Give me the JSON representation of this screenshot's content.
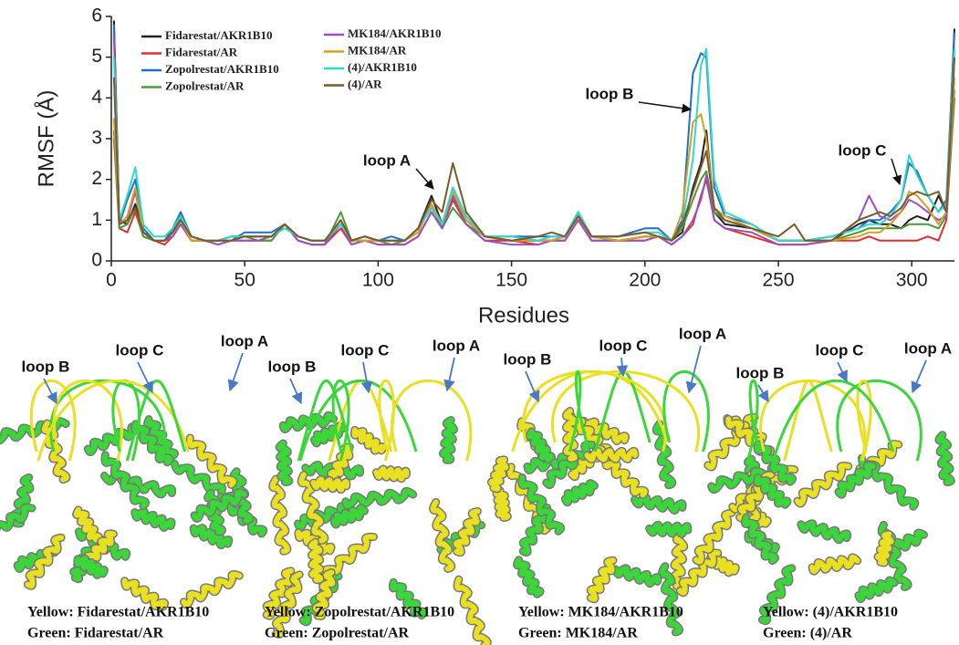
{
  "chart_data": {
    "type": "line",
    "ylabel": "RMSF (Å)",
    "xlabel": "Residues",
    "xlim": [
      0,
      316
    ],
    "ylim": [
      0,
      6
    ],
    "xticks": [
      0,
      50,
      100,
      150,
      200,
      250,
      300
    ],
    "yticks": [
      0,
      1,
      2,
      3,
      4,
      5,
      6
    ],
    "legend": "top-left",
    "x": [
      1,
      3,
      6,
      9,
      12,
      16,
      20,
      23,
      26,
      30,
      35,
      40,
      45,
      50,
      55,
      60,
      65,
      70,
      75,
      80,
      86,
      90,
      95,
      100,
      105,
      110,
      115,
      120,
      124,
      128,
      133,
      140,
      150,
      160,
      165,
      170,
      175,
      180,
      190,
      200,
      205,
      210,
      214,
      218,
      221,
      223,
      226,
      230,
      240,
      250,
      256,
      260,
      270,
      280,
      284,
      288,
      292,
      296,
      299,
      302,
      306,
      310,
      313,
      316
    ],
    "series": [
      {
        "name": "Fidarestat/AKR1B10",
        "color": "#222222",
        "values": [
          5.9,
          1.0,
          0.9,
          1.4,
          0.7,
          0.5,
          0.5,
          0.7,
          1.1,
          0.6,
          0.5,
          0.5,
          0.6,
          0.6,
          0.6,
          0.6,
          0.9,
          0.6,
          0.5,
          0.5,
          0.9,
          0.5,
          0.6,
          0.5,
          0.5,
          0.5,
          0.8,
          1.6,
          0.9,
          1.6,
          1.0,
          0.6,
          0.5,
          0.5,
          0.5,
          0.6,
          1.1,
          0.6,
          0.5,
          0.6,
          0.6,
          0.5,
          0.7,
          1.8,
          2.4,
          3.2,
          1.2,
          0.9,
          0.8,
          0.5,
          0.5,
          0.5,
          0.5,
          0.9,
          1.0,
          0.9,
          0.9,
          0.8,
          1.0,
          1.1,
          1.0,
          1.6,
          1.2,
          5.7
        ]
      },
      {
        "name": "Fidarestat/AR",
        "color": "#e03030",
        "values": [
          3.0,
          0.8,
          0.7,
          1.2,
          0.6,
          0.5,
          0.4,
          0.6,
          0.9,
          0.5,
          0.5,
          0.4,
          0.5,
          0.5,
          0.5,
          0.5,
          0.9,
          0.5,
          0.4,
          0.4,
          0.8,
          0.4,
          0.5,
          0.4,
          0.4,
          0.4,
          0.6,
          1.2,
          0.8,
          1.5,
          0.9,
          0.5,
          0.5,
          0.4,
          0.5,
          0.5,
          1.0,
          0.5,
          0.5,
          0.5,
          0.6,
          0.4,
          0.6,
          0.9,
          1.6,
          2.0,
          1.0,
          0.8,
          0.6,
          0.4,
          0.4,
          0.4,
          0.5,
          0.5,
          0.6,
          0.5,
          0.5,
          0.5,
          0.5,
          0.5,
          0.6,
          0.5,
          1.0,
          4.0
        ]
      },
      {
        "name": "Zopolrestat/AKR1B10",
        "color": "#1f6fd0",
        "values": [
          5.8,
          0.9,
          1.5,
          2.0,
          0.8,
          0.5,
          0.5,
          0.8,
          1.2,
          0.6,
          0.5,
          0.5,
          0.5,
          0.7,
          0.7,
          0.7,
          0.9,
          0.6,
          0.5,
          0.5,
          1.0,
          0.5,
          0.6,
          0.5,
          0.6,
          0.5,
          0.8,
          1.3,
          0.9,
          1.8,
          1.1,
          0.6,
          0.6,
          0.6,
          0.6,
          0.6,
          1.2,
          0.6,
          0.6,
          0.8,
          0.8,
          0.5,
          1.0,
          4.6,
          5.1,
          5.0,
          1.8,
          1.1,
          0.9,
          0.5,
          0.5,
          0.5,
          0.6,
          0.8,
          1.0,
          1.0,
          1.2,
          1.5,
          2.4,
          2.2,
          1.6,
          1.2,
          1.5,
          5.6
        ]
      },
      {
        "name": "Zopolrestat/AR",
        "color": "#4a9a3a",
        "values": [
          3.2,
          0.8,
          0.9,
          1.3,
          0.6,
          0.5,
          0.5,
          0.6,
          0.9,
          0.5,
          0.5,
          0.5,
          0.5,
          0.6,
          0.5,
          0.5,
          0.9,
          0.5,
          0.4,
          0.4,
          1.2,
          0.5,
          0.5,
          0.5,
          0.4,
          0.5,
          0.7,
          1.4,
          0.8,
          1.3,
          0.9,
          0.6,
          0.5,
          0.5,
          0.5,
          0.6,
          1.2,
          0.6,
          0.5,
          0.6,
          0.6,
          0.5,
          0.8,
          1.5,
          2.0,
          2.2,
          1.2,
          1.0,
          0.8,
          0.5,
          0.5,
          0.5,
          0.5,
          0.7,
          0.8,
          0.8,
          0.8,
          0.8,
          0.9,
          0.9,
          0.9,
          0.8,
          1.1,
          4.2
        ]
      },
      {
        "name": "MK184/AKR1B10",
        "color": "#9b4fc0",
        "values": [
          5.5,
          0.9,
          1.0,
          1.7,
          0.7,
          0.5,
          0.5,
          0.6,
          0.9,
          0.5,
          0.5,
          0.4,
          0.5,
          0.5,
          0.5,
          0.6,
          0.9,
          0.5,
          0.4,
          0.4,
          0.9,
          0.4,
          0.5,
          0.4,
          0.4,
          0.4,
          0.6,
          1.2,
          0.8,
          1.6,
          0.9,
          0.5,
          0.4,
          0.4,
          0.5,
          0.5,
          1.0,
          0.5,
          0.5,
          0.5,
          0.6,
          0.4,
          0.6,
          1.0,
          1.5,
          2.1,
          1.0,
          0.8,
          0.7,
          0.4,
          0.4,
          0.4,
          0.5,
          1.0,
          1.6,
          1.1,
          1.0,
          1.2,
          1.5,
          1.4,
          1.2,
          1.0,
          1.1,
          5.0
        ]
      },
      {
        "name": "MK184/AR",
        "color": "#d9a020",
        "values": [
          3.5,
          0.9,
          1.1,
          1.8,
          0.7,
          0.5,
          0.5,
          0.7,
          1.0,
          0.5,
          0.5,
          0.5,
          0.5,
          0.6,
          0.6,
          0.6,
          0.9,
          0.6,
          0.5,
          0.5,
          1.0,
          0.5,
          0.5,
          0.5,
          0.5,
          0.5,
          0.7,
          1.4,
          0.9,
          1.7,
          1.0,
          0.6,
          0.5,
          0.5,
          0.5,
          0.6,
          1.1,
          0.6,
          0.5,
          0.6,
          0.6,
          0.5,
          1.2,
          3.4,
          3.6,
          3.0,
          1.3,
          1.1,
          0.8,
          0.5,
          0.5,
          0.5,
          0.5,
          0.6,
          0.7,
          0.7,
          0.9,
          1.2,
          1.7,
          1.6,
          1.3,
          0.9,
          1.2,
          4.5
        ]
      },
      {
        "name": "(4)/AKR1B10",
        "color": "#30d8c8",
        "values": [
          5.0,
          1.0,
          1.6,
          2.3,
          0.9,
          0.6,
          0.6,
          0.8,
          1.1,
          0.6,
          0.5,
          0.5,
          0.6,
          0.6,
          0.6,
          0.6,
          0.8,
          0.6,
          0.5,
          0.5,
          0.9,
          0.5,
          0.6,
          0.5,
          0.5,
          0.5,
          0.8,
          1.3,
          0.9,
          1.8,
          1.1,
          0.6,
          0.6,
          0.5,
          0.6,
          0.6,
          1.2,
          0.6,
          0.6,
          0.7,
          0.7,
          0.5,
          0.9,
          2.5,
          4.8,
          5.2,
          2.0,
          1.2,
          0.9,
          0.5,
          0.5,
          0.5,
          0.6,
          0.8,
          0.9,
          0.9,
          1.1,
          1.5,
          2.6,
          2.1,
          1.6,
          1.2,
          1.4,
          5.2
        ]
      },
      {
        "name": "(4)/AR",
        "color": "#7a5a2a",
        "values": [
          4.5,
          0.9,
          1.0,
          1.3,
          0.7,
          0.5,
          0.5,
          0.7,
          1.0,
          0.6,
          0.5,
          0.5,
          0.5,
          0.6,
          0.6,
          0.6,
          0.9,
          0.6,
          0.5,
          0.5,
          1.0,
          0.5,
          0.6,
          0.5,
          0.5,
          0.5,
          0.8,
          1.5,
          1.2,
          2.4,
          1.2,
          0.6,
          0.5,
          0.6,
          0.7,
          0.6,
          1.1,
          0.6,
          0.6,
          0.7,
          0.6,
          0.5,
          0.9,
          1.7,
          2.3,
          2.7,
          1.3,
          1.0,
          0.8,
          0.6,
          0.9,
          0.5,
          0.5,
          1.0,
          1.1,
          1.2,
          1.1,
          1.3,
          1.6,
          1.7,
          1.6,
          1.7,
          1.2,
          5.0
        ]
      }
    ],
    "annotations": [
      "loop A",
      "loop B",
      "loop C"
    ]
  },
  "panels": [
    {
      "loop_labels": [
        "loop B",
        "loop C",
        "loop A"
      ],
      "caption": [
        "Yellow: Fidarestat/AKR1B10",
        "Green: Fidarestat/AR"
      ]
    },
    {
      "loop_labels": [
        "loop B",
        "loop C",
        "loop A"
      ],
      "caption": [
        "Yellow: Zopolrestat/AKR1B10",
        "Green: Zopolrestat/AR"
      ]
    },
    {
      "loop_labels": [
        "loop B",
        "loop C",
        "loop A"
      ],
      "caption": [
        "Yellow: MK184/AKR1B10",
        "Green: MK184/AR"
      ]
    },
    {
      "loop_labels": [
        "loop B",
        "loop C",
        "loop A"
      ],
      "caption": [
        "Yellow: (4)/AKR1B10",
        "Green: (4)/AR"
      ]
    }
  ]
}
